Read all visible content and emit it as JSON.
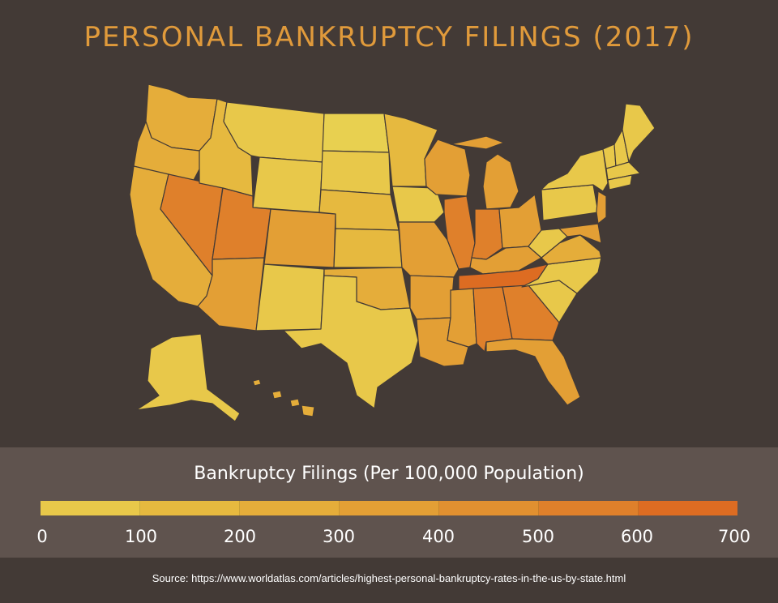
{
  "title": "PERSONAL BANKRUPTCY FILINGS (2017)",
  "legend": {
    "title": "Bankruptcy Filings (Per 100,000 Population)",
    "ticks": [
      "0",
      "100",
      "200",
      "300",
      "400",
      "500",
      "600",
      "700"
    ],
    "colors": [
      "#e8c84a",
      "#e6b93f",
      "#e5ad3a",
      "#e39f35",
      "#e19030",
      "#df802b",
      "#dd6c22"
    ]
  },
  "source": "Source: https://www.worldatlas.com/articles/highest-personal-bankruptcy-rates-in-the-us-by-state.html",
  "colors": {
    "background": "#433a36",
    "legend_panel": "#5f534e",
    "title": "#e09a3b",
    "borders": "#433a36"
  }
}
